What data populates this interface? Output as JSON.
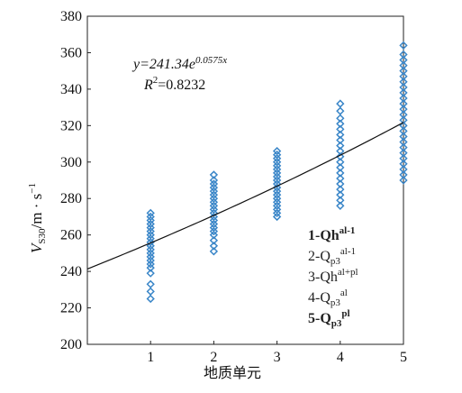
{
  "chart_data": {
    "type": "scatter",
    "xlabel": "地质单元",
    "ylabel": {
      "main": "V",
      "sub": "S30",
      "unit": "/m · s",
      "sup": "−1"
    },
    "xlim": [
      0,
      5
    ],
    "ylim": [
      200,
      380
    ],
    "x_ticks": [
      "1",
      "2",
      "3",
      "4",
      "5"
    ],
    "y_ticks": [
      200,
      220,
      240,
      260,
      280,
      300,
      320,
      340,
      360,
      380
    ],
    "grid": false,
    "marker_color": "#3a86c8",
    "fit_line": {
      "equation_prefix": "y=241.34e",
      "equation_exponent": "0.0575x",
      "r2_prefix": "R",
      "r2_sup": "2",
      "r2_value": "=0.8232",
      "a": 241.34,
      "b": 0.0575,
      "x_range": [
        0,
        5
      ]
    },
    "series": [
      {
        "x": 1,
        "values": [
          225,
          229,
          233,
          239,
          242,
          244,
          246,
          248,
          250,
          252,
          254,
          256,
          258,
          260,
          262,
          264,
          266,
          268,
          270,
          272
        ]
      },
      {
        "x": 2,
        "values": [
          251,
          254,
          257,
          260,
          262,
          264,
          266,
          268,
          270,
          272,
          274,
          276,
          278,
          280,
          282,
          284,
          286,
          288,
          290,
          293
        ]
      },
      {
        "x": 3,
        "values": [
          270,
          272,
          274,
          276,
          278,
          280,
          282,
          284,
          286,
          288,
          290,
          292,
          294,
          296,
          298,
          300,
          302,
          304,
          306
        ]
      },
      {
        "x": 4,
        "values": [
          276,
          279,
          282,
          285,
          288,
          291,
          294,
          297,
          300,
          303,
          306,
          309,
          312,
          315,
          318,
          321,
          324,
          328,
          332
        ]
      },
      {
        "x": 5,
        "values": [
          290,
          293,
          296,
          299,
          302,
          305,
          308,
          311,
          314,
          317,
          320,
          323,
          326,
          329,
          332,
          335,
          338,
          341,
          344,
          347,
          350,
          353,
          356,
          359,
          364
        ]
      }
    ],
    "legend": [
      {
        "prefix": "1-Qh",
        "sub": "",
        "sup": "al-1",
        "bold": true
      },
      {
        "prefix": "2-Q",
        "sub": "p3",
        "sup": "al-1",
        "bold": false
      },
      {
        "prefix": "3-Qh",
        "sub": "",
        "sup": "al+pl",
        "bold": false
      },
      {
        "prefix": "4-Q",
        "sub": "p3",
        "sup": "al",
        "bold": false
      },
      {
        "prefix": "5-Q",
        "sub": "p3",
        "sup": "pl",
        "bold": true
      }
    ]
  }
}
